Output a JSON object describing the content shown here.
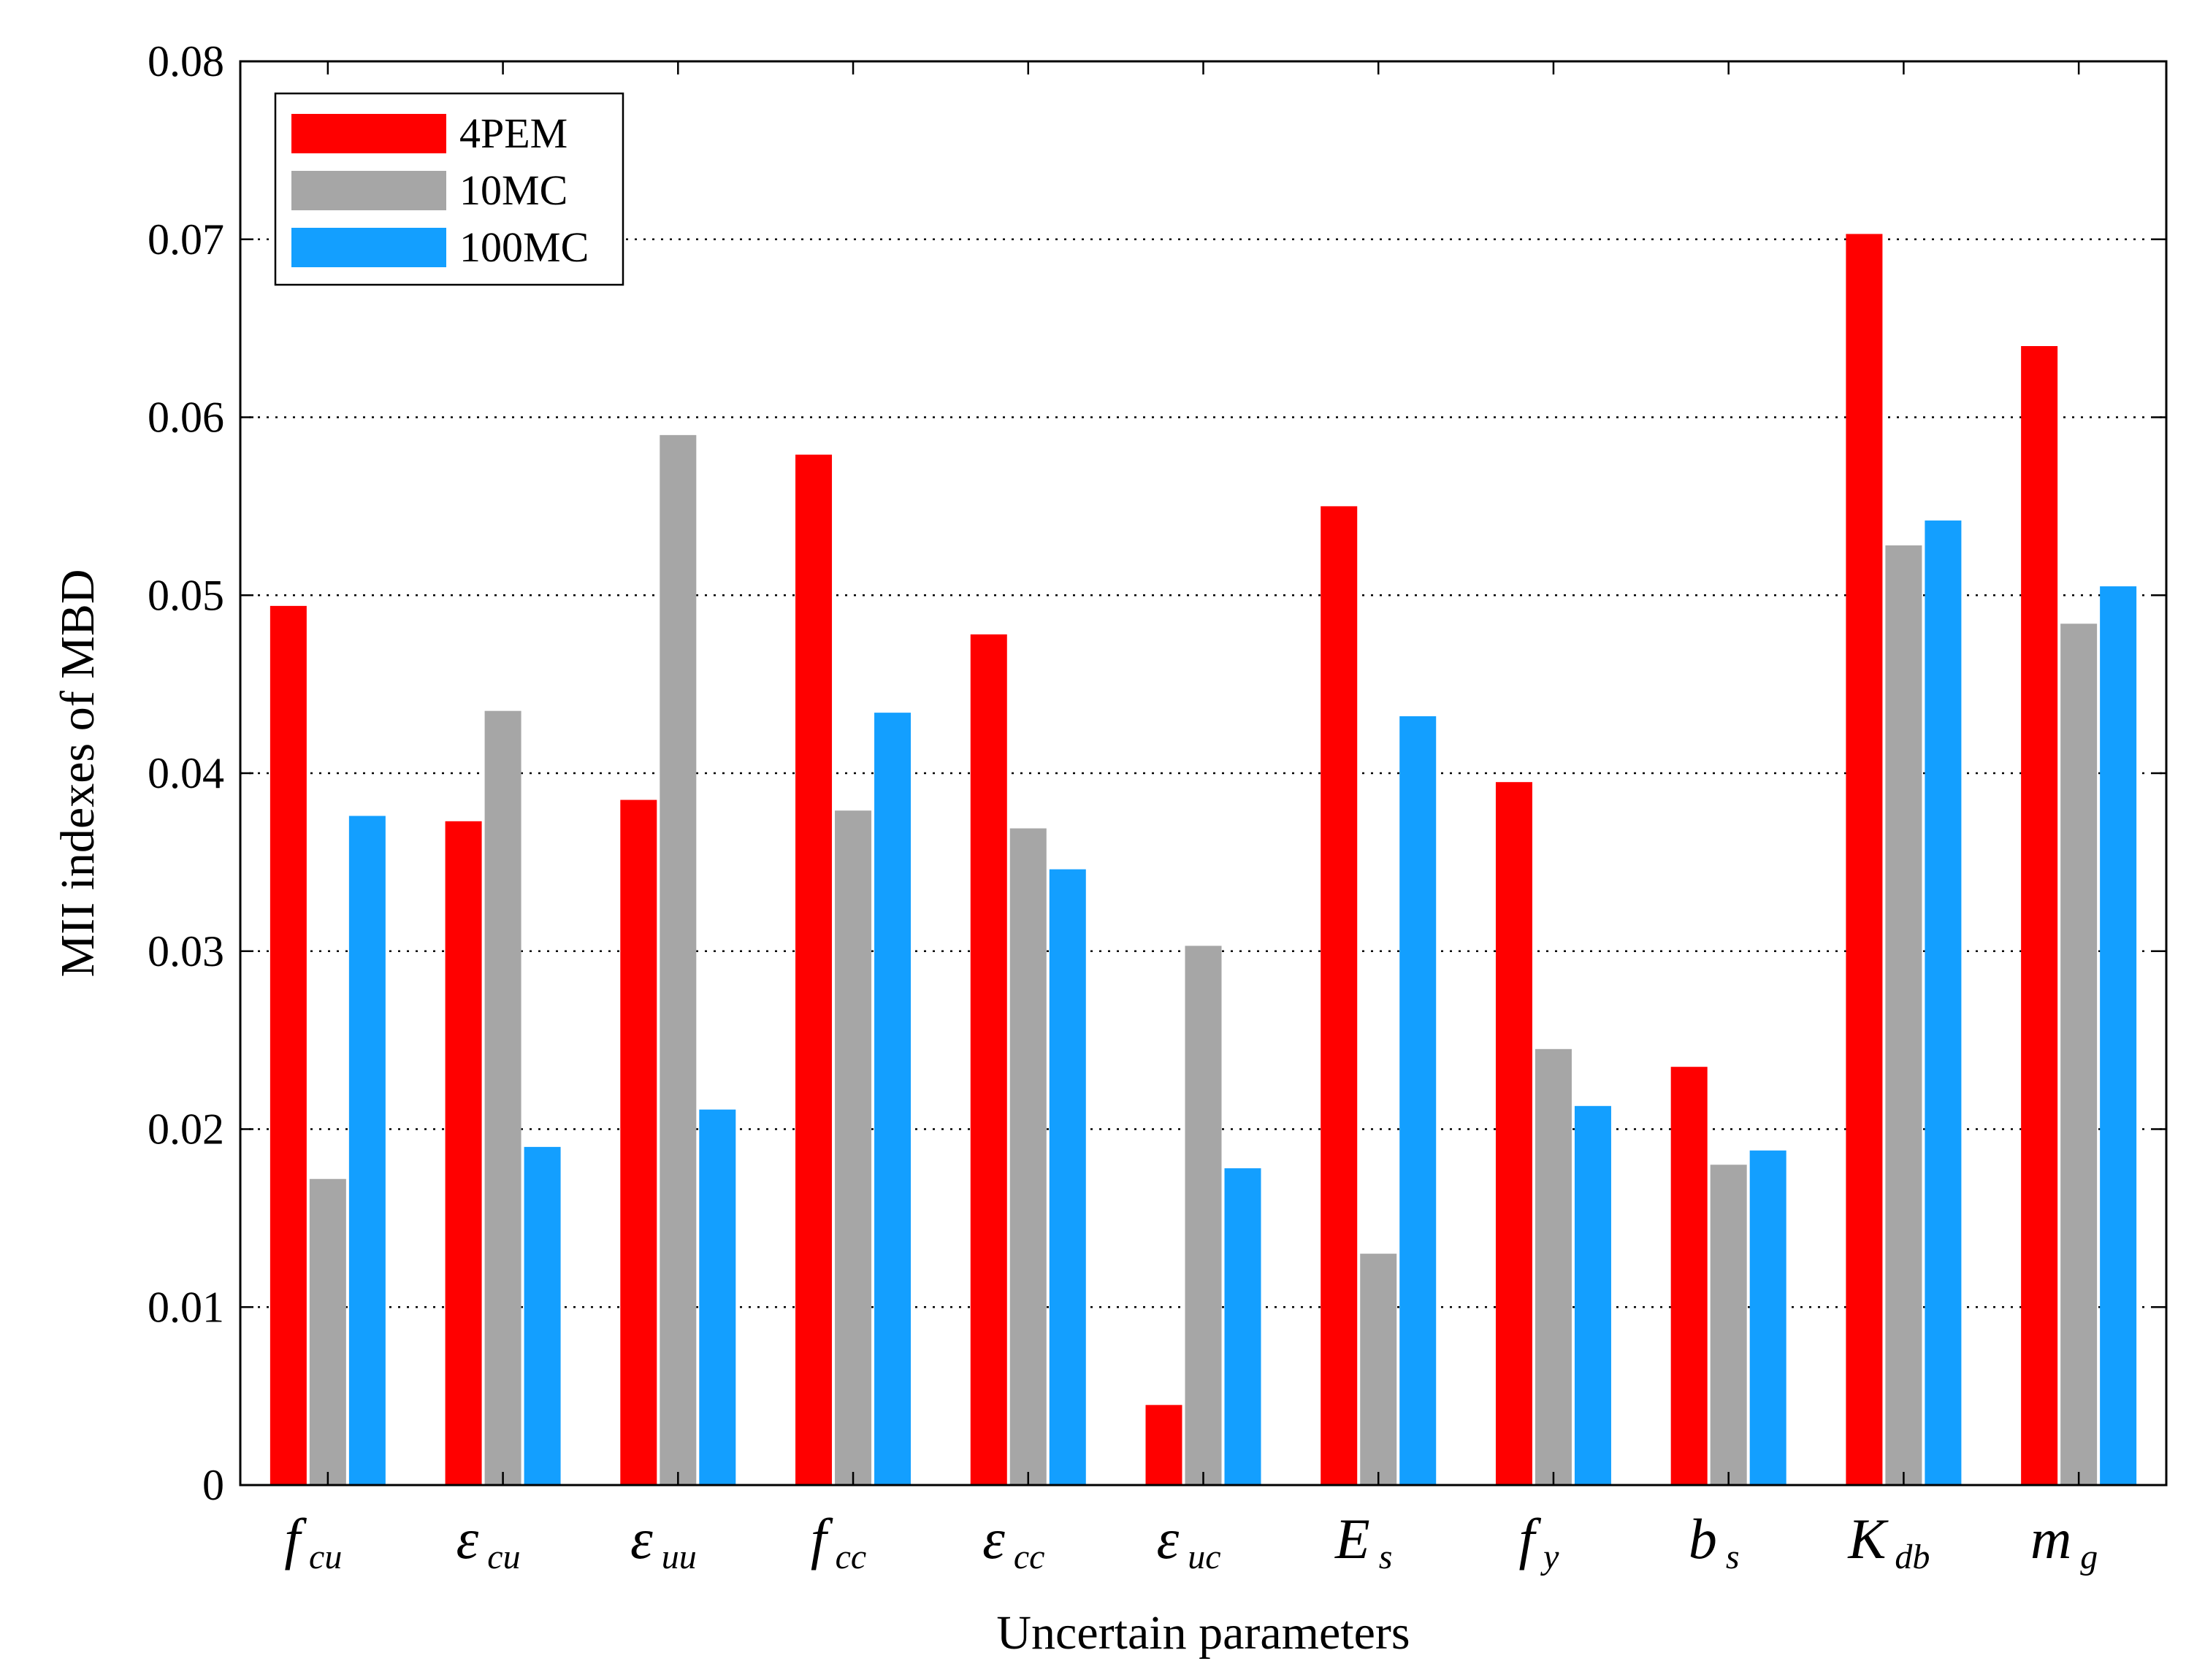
{
  "chart_data": {
    "type": "bar",
    "xlabel": "Uncertain parameters",
    "ylabel": "MII indexes of MBD",
    "ylim": [
      0,
      0.08
    ],
    "yticks": [
      "0",
      "0.01",
      "0.02",
      "0.03",
      "0.04",
      "0.05",
      "0.06",
      "0.07",
      "0.08"
    ],
    "grid": "horizontal dotted",
    "legend_position": "top-left",
    "categories": [
      {
        "main": "f",
        "sub": "cu"
      },
      {
        "main": "ε",
        "sub": "cu"
      },
      {
        "main": "ε",
        "sub": "uu"
      },
      {
        "main": "f",
        "sub": "cc"
      },
      {
        "main": "ε",
        "sub": "cc"
      },
      {
        "main": "ε",
        "sub": "uc"
      },
      {
        "main": "E",
        "sub": "s"
      },
      {
        "main": "f",
        "sub": "y"
      },
      {
        "main": "b",
        "sub": "s"
      },
      {
        "main": "K",
        "sub": "db"
      },
      {
        "main": "m",
        "sub": "g"
      }
    ],
    "series": [
      {
        "name": "4PEM",
        "color": "#ff0000",
        "values": [
          0.0494,
          0.0373,
          0.0385,
          0.0579,
          0.0478,
          0.0045,
          0.055,
          0.0395,
          0.0235,
          0.0703,
          0.064
        ]
      },
      {
        "name": "10MC",
        "color": "#a6a6a6",
        "values": [
          0.0172,
          0.0435,
          0.059,
          0.0379,
          0.0369,
          0.0303,
          0.013,
          0.0245,
          0.018,
          0.0528,
          0.0484
        ]
      },
      {
        "name": "100MC",
        "color": "#139fff",
        "values": [
          0.0376,
          0.019,
          0.0211,
          0.0434,
          0.0346,
          0.0178,
          0.0432,
          0.0213,
          0.0188,
          0.0542,
          0.0505
        ]
      }
    ]
  }
}
